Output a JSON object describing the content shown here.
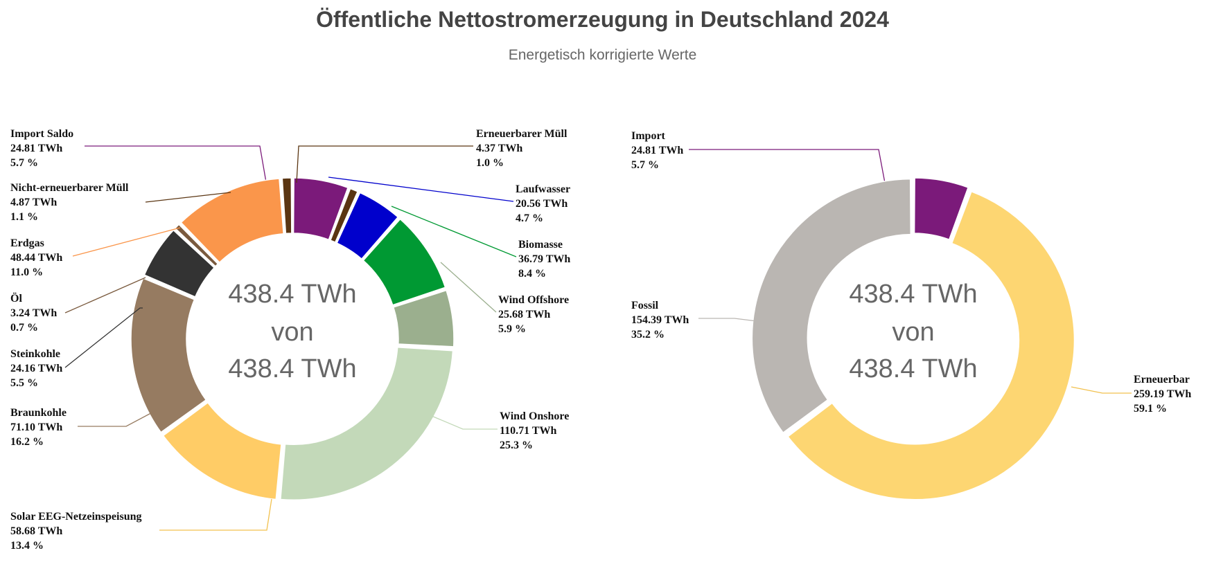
{
  "title": "Öffentliche Nettostromerzeugung in Deutschland 2024",
  "subtitle": "Energetisch korrigierte Werte",
  "chart_data": [
    {
      "type": "donut",
      "center_text": [
        "438.4 TWh",
        "von",
        "438.4 TWh"
      ],
      "unit": "TWh",
      "slices": [
        {
          "name": "Import Saldo",
          "value": 24.81,
          "value_label": "24.81 TWh",
          "percent_label": "5.7 %",
          "color": "#7B1A7A"
        },
        {
          "name": "Erneuerbarer Müll",
          "value": 4.37,
          "value_label": "4.37 TWh",
          "percent_label": "1.0 %",
          "color": "#5A3512"
        },
        {
          "name": "Laufwasser",
          "value": 20.56,
          "value_label": "20.56 TWh",
          "percent_label": "4.7 %",
          "color": "#0000CC"
        },
        {
          "name": "Biomasse",
          "value": 36.79,
          "value_label": "36.79 TWh",
          "percent_label": "8.4 %",
          "color": "#009933"
        },
        {
          "name": "Wind Offshore",
          "value": 25.68,
          "value_label": "25.68 TWh",
          "percent_label": "5.9 %",
          "color": "#9BAF8E"
        },
        {
          "name": "Wind Onshore",
          "value": 110.71,
          "value_label": "110.71 TWh",
          "percent_label": "25.3 %",
          "color": "#C3D9B9"
        },
        {
          "name": "Solar EEG-Netzeinspeisung",
          "value": 58.68,
          "value_label": "58.68 TWh",
          "percent_label": "13.4 %",
          "color": "#FFCC66"
        },
        {
          "name": "Braunkohle",
          "value": 71.1,
          "value_label": "71.10 TWh",
          "percent_label": "16.2 %",
          "color": "#967B61"
        },
        {
          "name": "Steinkohle",
          "value": 24.16,
          "value_label": "24.16 TWh",
          "percent_label": "5.5 %",
          "color": "#333333"
        },
        {
          "name": "Öl",
          "value": 3.24,
          "value_label": "3.24 TWh",
          "percent_label": "0.7 %",
          "color": "#7A5A3E"
        },
        {
          "name": "Erdgas",
          "value": 48.44,
          "value_label": "48.44 TWh",
          "percent_label": "11.0 %",
          "color": "#FA964B"
        },
        {
          "name": "Nicht-erneuerbarer Müll",
          "value": 4.87,
          "value_label": "4.87 TWh",
          "percent_label": "1.1 %",
          "color": "#5A3512"
        }
      ]
    },
    {
      "type": "donut",
      "center_text": [
        "438.4 TWh",
        "von",
        "438.4 TWh"
      ],
      "unit": "TWh",
      "slices": [
        {
          "name": "Import",
          "value": 24.81,
          "value_label": "24.81 TWh",
          "percent_label": "5.7 %",
          "color": "#7B1A7A"
        },
        {
          "name": "Erneuerbar",
          "value": 259.19,
          "value_label": "259.19 TWh",
          "percent_label": "59.1 %",
          "color": "#FDD672"
        },
        {
          "name": "Fossil",
          "value": 154.39,
          "value_label": "154.39 TWh",
          "percent_label": "35.2 %",
          "color": "#BAB6B2"
        }
      ]
    }
  ]
}
